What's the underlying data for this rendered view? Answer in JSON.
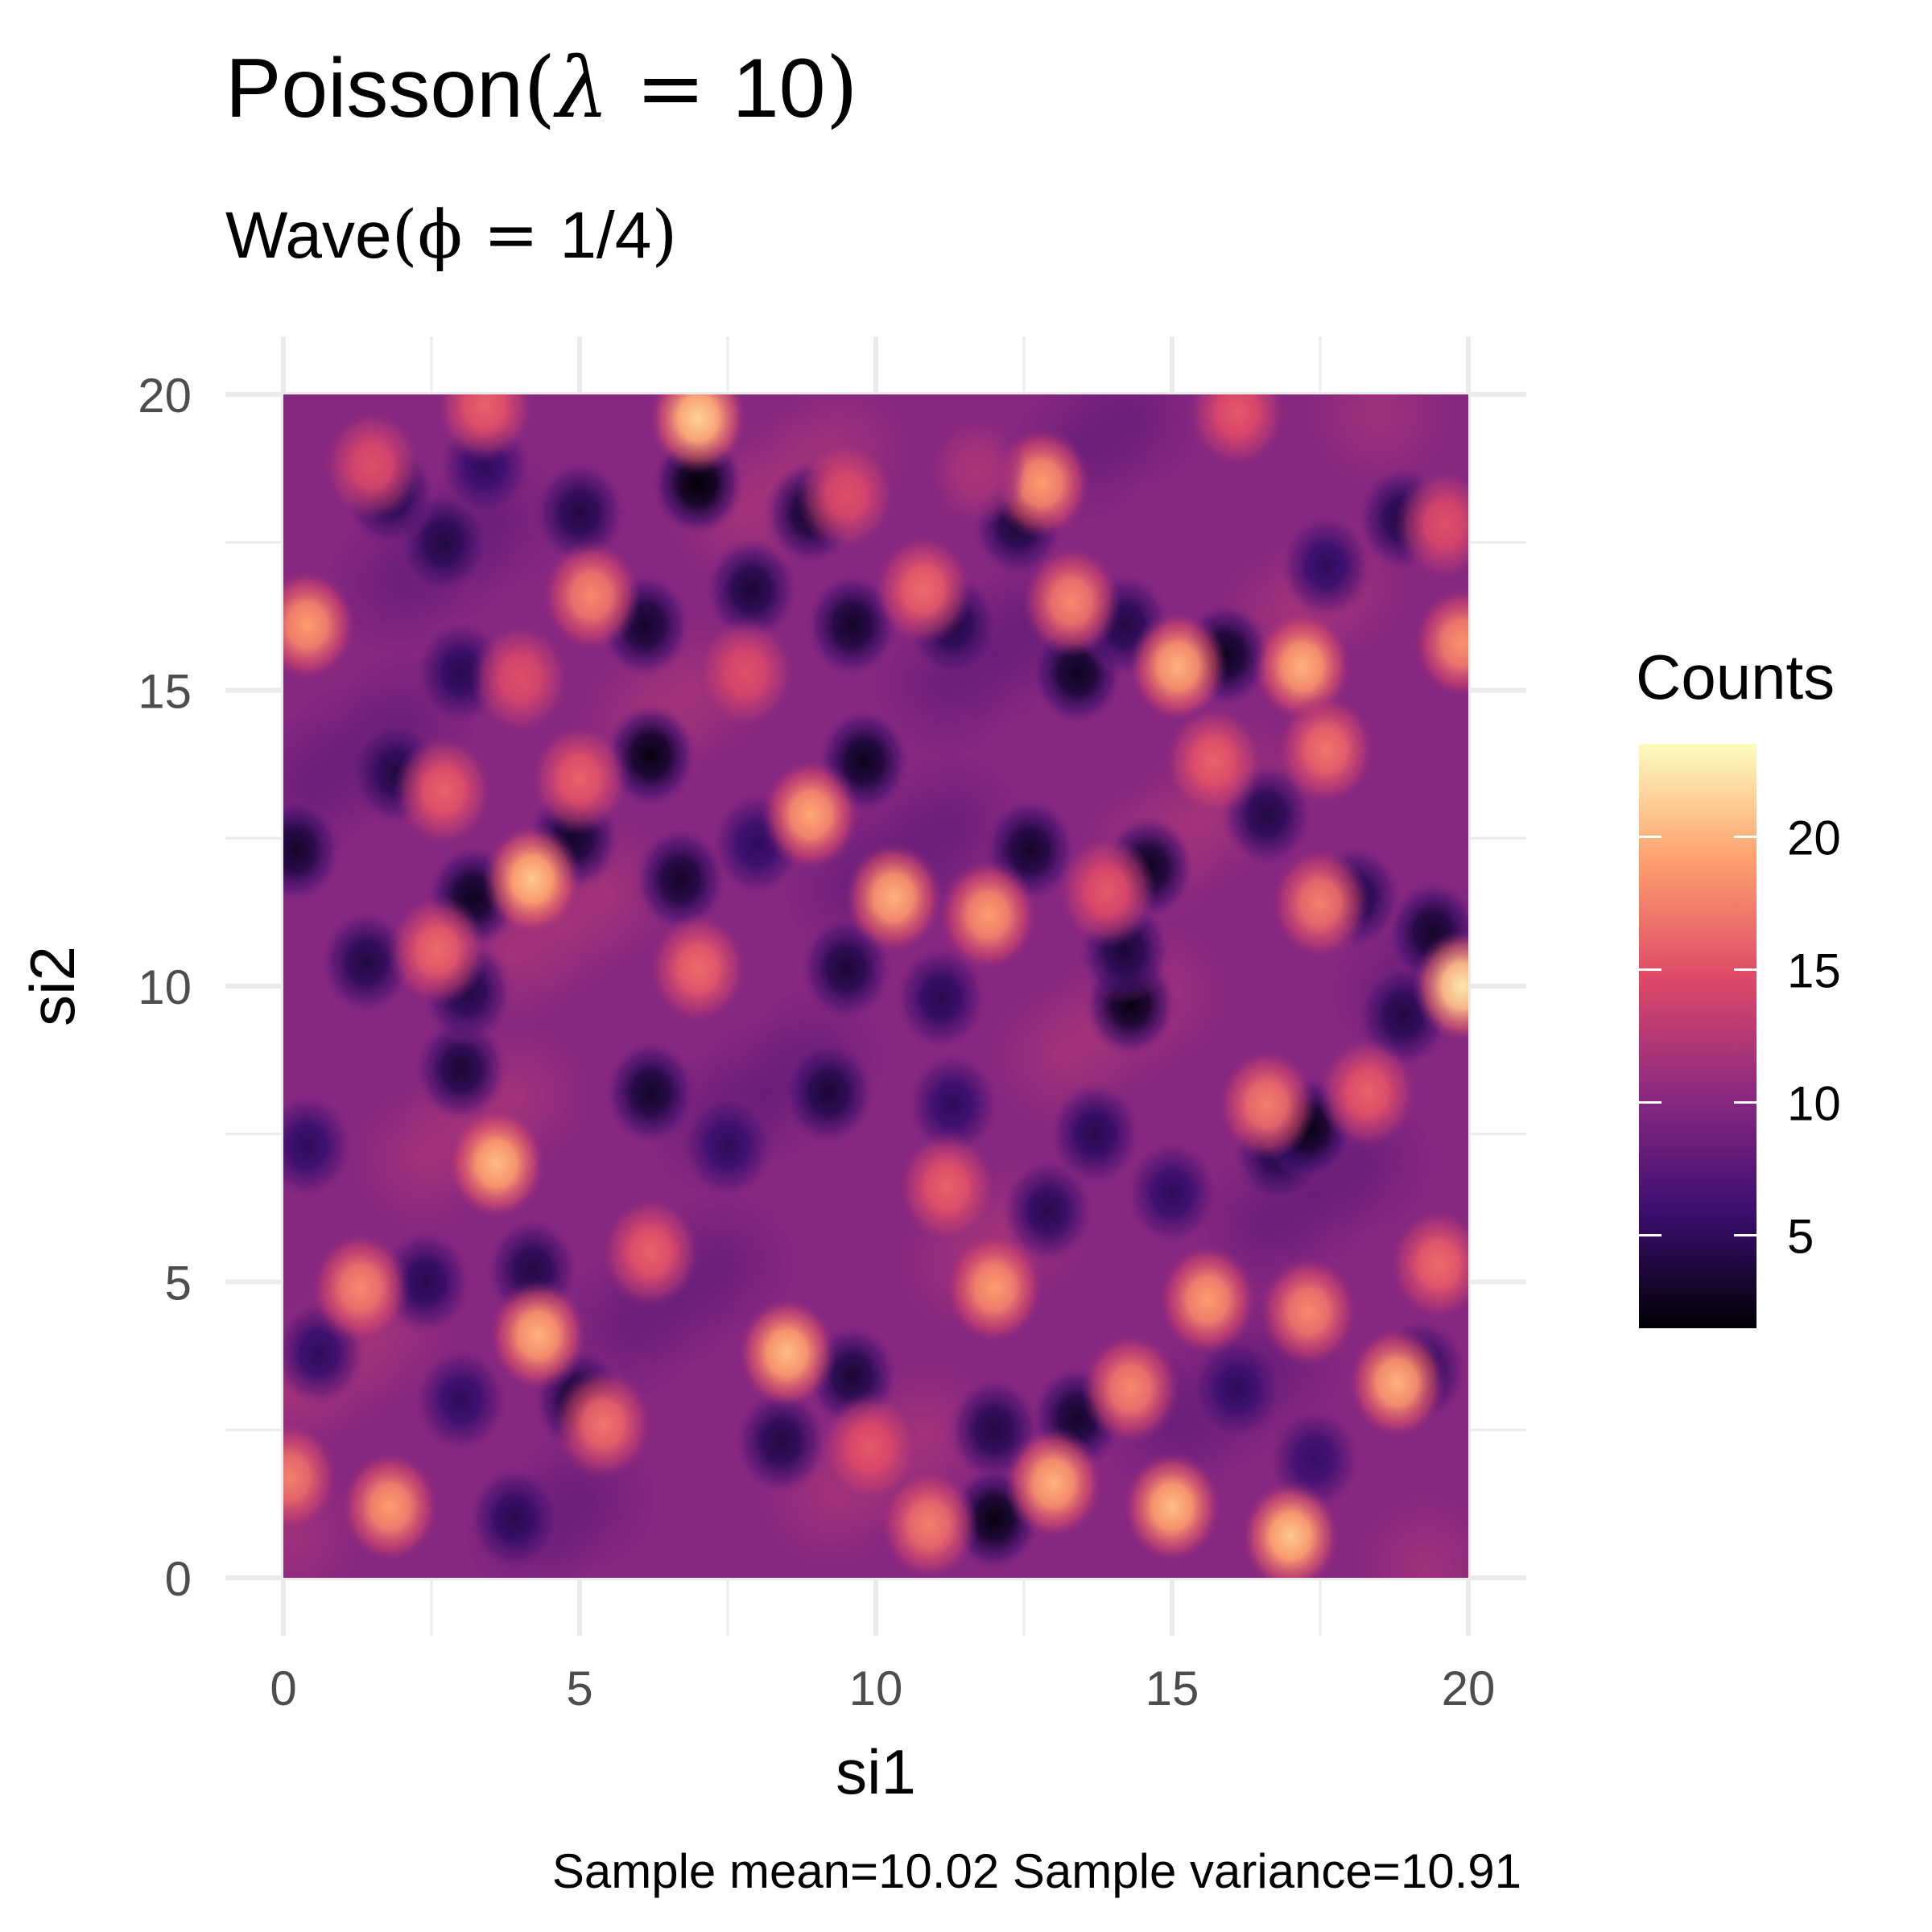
{
  "chart_data": {
    "type": "heatmap",
    "title": {
      "prefix": "Poisson",
      "open": "(",
      "symbol": "λ",
      "relation": " = ",
      "value": "10",
      "close": ")"
    },
    "subtitle": {
      "prefix": "Wave",
      "open": "(",
      "symbol": "ϕ",
      "relation": " = ",
      "value": "1/4",
      "close": ")"
    },
    "xlabel": "si1",
    "ylabel": "si2",
    "xlim": [
      0,
      20
    ],
    "ylim": [
      0,
      20
    ],
    "x_ticks": [
      "0",
      "5",
      "10",
      "15",
      "20"
    ],
    "y_ticks": [
      "0",
      "5",
      "10",
      "15",
      "20"
    ],
    "grid": true,
    "colormap": "magma",
    "colors": [
      "#000004",
      "#3b0f70",
      "#8c2981",
      "#de4968",
      "#fe9f6d",
      "#fcfdbf"
    ],
    "legend": {
      "title": "Counts",
      "position": "right",
      "ticks": [
        "5",
        "10",
        "15",
        "20"
      ],
      "range": [
        1.5,
        23.5
      ]
    },
    "caption": "Sample mean=10.02 Sample variance=10.91",
    "hot_spots": [
      [
        7.0,
        19.6,
        21.5
      ],
      [
        16.1,
        19.7,
        15.5
      ],
      [
        12.8,
        18.5,
        19
      ],
      [
        11.7,
        18.7,
        12
      ],
      [
        0.4,
        16.1,
        19
      ],
      [
        5.2,
        16.6,
        18
      ],
      [
        10.8,
        16.7,
        16.5
      ],
      [
        13.3,
        16.5,
        18
      ],
      [
        15.1,
        15.4,
        20
      ],
      [
        17.2,
        15.4,
        20
      ],
      [
        19.9,
        15.8,
        18.5
      ],
      [
        8.9,
        12.9,
        19.5
      ],
      [
        4.2,
        11.8,
        21
      ],
      [
        5.0,
        13.5,
        16
      ],
      [
        10.3,
        11.5,
        20
      ],
      [
        11.9,
        11.2,
        19
      ],
      [
        13.9,
        11.6,
        15.5
      ],
      [
        17.5,
        11.4,
        17.5
      ],
      [
        19.9,
        10.0,
        22.5
      ],
      [
        2.6,
        10.6,
        16.5
      ],
      [
        7.0,
        10.3,
        16.5
      ],
      [
        3.6,
        7.0,
        20.5
      ],
      [
        16.6,
        8.0,
        17.5
      ],
      [
        18.3,
        8.2,
        16
      ],
      [
        11.2,
        6.6,
        16
      ],
      [
        4.3,
        4.1,
        20
      ],
      [
        6.2,
        5.5,
        16
      ],
      [
        8.5,
        3.8,
        20.5
      ],
      [
        12.0,
        4.9,
        19
      ],
      [
        14.3,
        3.2,
        18
      ],
      [
        15.6,
        4.7,
        19
      ],
      [
        17.3,
        4.5,
        18
      ],
      [
        18.8,
        3.3,
        20
      ],
      [
        19.5,
        5.3,
        16.5
      ],
      [
        13.0,
        1.6,
        20
      ],
      [
        15.0,
        1.2,
        20.5
      ],
      [
        17.0,
        0.7,
        21
      ],
      [
        10.9,
        0.9,
        17.5
      ],
      [
        1.8,
        1.2,
        19
      ],
      [
        0.1,
        1.7,
        17.5
      ],
      [
        1.3,
        4.9,
        18
      ],
      [
        5.4,
        2.6,
        17
      ],
      [
        9.9,
        2.2,
        15.5
      ],
      [
        2.7,
        13.3,
        16
      ],
      [
        4.0,
        15.2,
        15
      ],
      [
        7.8,
        15.3,
        15
      ],
      [
        1.5,
        18.8,
        15
      ],
      [
        9.5,
        18.3,
        15
      ],
      [
        3.4,
        19.8,
        16
      ],
      [
        19.6,
        17.8,
        15
      ],
      [
        17.6,
        14.0,
        17
      ],
      [
        15.7,
        13.8,
        16
      ]
    ],
    "cold_spots": [
      [
        7.0,
        18.5,
        1.5
      ],
      [
        5.0,
        18.0,
        4
      ],
      [
        8.9,
        18.0,
        3
      ],
      [
        12.4,
        17.8,
        3.5
      ],
      [
        2.7,
        17.5,
        4
      ],
      [
        1.8,
        18.3,
        4
      ],
      [
        3.4,
        18.8,
        5
      ],
      [
        7.9,
        16.7,
        3.5
      ],
      [
        6.1,
        16.1,
        3
      ],
      [
        9.6,
        16.1,
        3
      ],
      [
        11.3,
        16.1,
        4
      ],
      [
        13.4,
        15.3,
        2.5
      ],
      [
        14.2,
        16.1,
        4
      ],
      [
        15.9,
        15.6,
        2.5
      ],
      [
        17.6,
        17.1,
        5
      ],
      [
        18.9,
        17.9,
        4
      ],
      [
        6.2,
        13.9,
        2
      ],
      [
        9.8,
        13.8,
        2.5
      ],
      [
        3.0,
        15.3,
        4.5
      ],
      [
        1.9,
        13.6,
        4
      ],
      [
        8.0,
        12.4,
        5
      ],
      [
        4.9,
        12.5,
        3
      ],
      [
        6.7,
        11.8,
        3
      ],
      [
        12.6,
        12.3,
        3
      ],
      [
        14.6,
        12.0,
        2.5
      ],
      [
        16.6,
        12.9,
        4
      ],
      [
        18.1,
        11.5,
        4
      ],
      [
        19.4,
        10.9,
        3
      ],
      [
        0.2,
        12.3,
        3
      ],
      [
        3.2,
        11.5,
        2.5
      ],
      [
        1.4,
        10.4,
        4
      ],
      [
        9.5,
        10.3,
        3.5
      ],
      [
        11.1,
        9.8,
        4.5
      ],
      [
        14.3,
        9.7,
        2
      ],
      [
        14.2,
        10.6,
        3.5
      ],
      [
        18.9,
        9.5,
        4
      ],
      [
        3.0,
        8.6,
        3.5
      ],
      [
        3.1,
        9.9,
        4
      ],
      [
        6.2,
        8.2,
        3
      ],
      [
        9.2,
        8.2,
        3.5
      ],
      [
        11.3,
        8.0,
        5
      ],
      [
        16.8,
        7.2,
        4
      ],
      [
        17.3,
        7.6,
        2
      ],
      [
        0.4,
        7.3,
        5
      ],
      [
        12.9,
        6.2,
        4.5
      ],
      [
        15.0,
        6.5,
        5
      ],
      [
        2.4,
        5.0,
        4.5
      ],
      [
        4.2,
        5.2,
        4
      ],
      [
        3.0,
        3.0,
        5
      ],
      [
        5.0,
        3.0,
        3
      ],
      [
        9.6,
        3.4,
        3.5
      ],
      [
        12.0,
        2.5,
        4
      ],
      [
        13.4,
        2.7,
        3
      ],
      [
        16.1,
        3.2,
        5
      ],
      [
        19.2,
        3.5,
        4.5
      ],
      [
        12.0,
        1.0,
        2
      ],
      [
        8.4,
        2.3,
        4
      ],
      [
        3.9,
        1.0,
        4.5
      ],
      [
        0.6,
        3.8,
        5
      ],
      [
        17.4,
        2.0,
        5.5
      ],
      [
        13.7,
        7.5,
        4.5
      ],
      [
        7.5,
        7.3,
        5
      ]
    ]
  }
}
